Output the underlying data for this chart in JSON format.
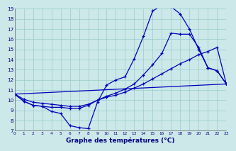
{
  "xlabel": "Graphe des températures (°C)",
  "xlim": [
    0,
    23
  ],
  "ylim": [
    7,
    19
  ],
  "yticks": [
    7,
    8,
    9,
    10,
    11,
    12,
    13,
    14,
    15,
    16,
    17,
    18,
    19
  ],
  "xticks": [
    0,
    1,
    2,
    3,
    4,
    5,
    6,
    7,
    8,
    9,
    10,
    11,
    12,
    13,
    14,
    15,
    16,
    17,
    18,
    19,
    20,
    21,
    22,
    23
  ],
  "bg_color": "#cce8e8",
  "grid_color": "#99cccc",
  "line_color": "#0000bb",
  "line1_x": [
    0,
    1,
    2,
    3,
    4,
    5,
    6,
    7,
    8,
    9,
    10,
    11,
    12,
    13,
    14,
    15,
    16,
    17,
    18,
    19,
    20,
    21,
    22,
    23
  ],
  "line1_y": [
    10.6,
    9.9,
    9.5,
    9.4,
    8.9,
    8.7,
    7.5,
    7.3,
    7.2,
    9.8,
    11.5,
    12.0,
    12.3,
    14.1,
    16.3,
    18.8,
    19.3,
    19.2,
    18.5,
    17.0,
    15.0,
    13.2,
    12.9,
    11.6
  ],
  "line2_x": [
    0,
    1,
    2,
    3,
    4,
    5,
    6,
    7,
    8,
    9,
    10,
    11,
    12,
    13,
    14,
    15,
    16,
    17,
    18,
    19,
    20,
    21,
    22,
    23
  ],
  "line2_y": [
    10.6,
    9.9,
    9.5,
    9.4,
    9.3,
    9.3,
    9.2,
    9.2,
    9.5,
    10.0,
    10.4,
    10.7,
    11.1,
    11.6,
    12.5,
    13.5,
    14.6,
    16.6,
    16.5,
    16.5,
    15.2,
    13.2,
    12.9,
    11.6
  ],
  "line3_x": [
    0,
    23
  ],
  "line3_y": [
    10.6,
    11.6
  ],
  "line4_x": [
    0,
    1,
    2,
    3,
    4,
    5,
    6,
    7,
    8,
    9,
    10,
    11,
    12,
    13,
    14,
    15,
    16,
    17,
    18,
    19,
    20,
    21,
    22,
    23
  ],
  "line4_y": [
    10.6,
    10.1,
    9.8,
    9.7,
    9.6,
    9.5,
    9.4,
    9.4,
    9.6,
    10.0,
    10.3,
    10.5,
    10.8,
    11.2,
    11.6,
    12.1,
    12.6,
    13.1,
    13.6,
    14.0,
    14.5,
    14.8,
    15.2,
    11.6
  ]
}
